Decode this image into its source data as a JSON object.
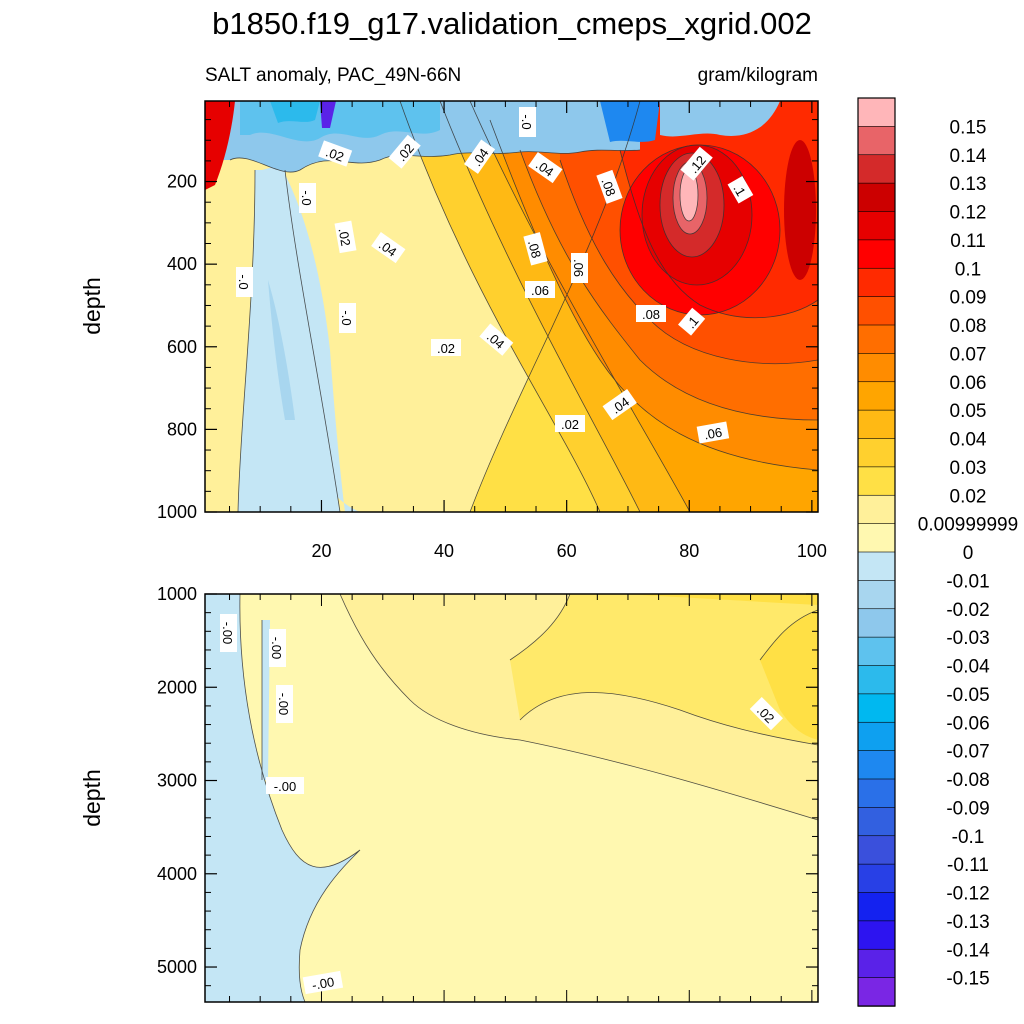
{
  "chart_data": {
    "type": "contour",
    "title": "b1850.f19_g17.validation_cmeps_xgrid.002",
    "subtitle_left": "SALT anomaly, PAC_49N-66N",
    "subtitle_right": "gram/kilogram",
    "colorbar": {
      "levels": [
        "0.15",
        "0.14",
        "0.13",
        "0.12",
        "0.11",
        "0.1",
        "0.09",
        "0.08",
        "0.07",
        "0.06",
        "0.05",
        "0.04",
        "0.03",
        "0.02",
        "0.00999999",
        "0",
        "-0.01",
        "-0.02",
        "-0.03",
        "-0.04",
        "-0.05",
        "-0.06",
        "-0.07",
        "-0.08",
        "-0.09",
        "-0.1",
        "-0.11",
        "-0.12",
        "-0.13",
        "-0.14",
        "-0.15"
      ],
      "colors": [
        "#ffb6b9",
        "#e86468",
        "#d42a2a",
        "#cc0000",
        "#e60000",
        "#ff0000",
        "#ff2a00",
        "#ff5000",
        "#ff6e00",
        "#ff8c00",
        "#ffa500",
        "#ffb914",
        "#ffd02e",
        "#ffe045",
        "#fff09a",
        "#fff8b0",
        "#c4e6f5",
        "#a8d6ef",
        "#8ec8ec",
        "#5ec2ee",
        "#2cbaec",
        "#00b8f0",
        "#0ea0f0",
        "#1e88f0",
        "#2a70e8",
        "#3260e0",
        "#3a50dc",
        "#2840e6",
        "#1422f0",
        "#2d14f0",
        "#5a22e8",
        "#7a26e4"
      ]
    },
    "top_panel": {
      "ylabel": "depth",
      "xlim": [
        1,
        101
      ],
      "ylim": [
        1000,
        5
      ],
      "xticks": [
        "20",
        "40",
        "60",
        "80",
        "100"
      ],
      "yticks": [
        "200",
        "400",
        "600",
        "800",
        "1000"
      ],
      "contour_labels": [
        ".02",
        ".02",
        ".04",
        ".04",
        "-.0",
        ".12",
        ".08",
        ".1",
        "-.0",
        ".02",
        ".04",
        ".08",
        "-.0",
        ".06",
        ".06",
        "-.0",
        ".08",
        ".1",
        ".04",
        ".02",
        ".04",
        ".02",
        ".06"
      ]
    },
    "bottom_panel": {
      "ylabel": "depth",
      "xlim": [
        1,
        101
      ],
      "ylim": [
        5375,
        1000
      ],
      "yticks": [
        "1000",
        "2000",
        "3000",
        "4000",
        "5000"
      ],
      "contour_labels": [
        "-.00",
        "-.00",
        "-.00",
        "-.00",
        ".02",
        "-.00"
      ]
    }
  }
}
